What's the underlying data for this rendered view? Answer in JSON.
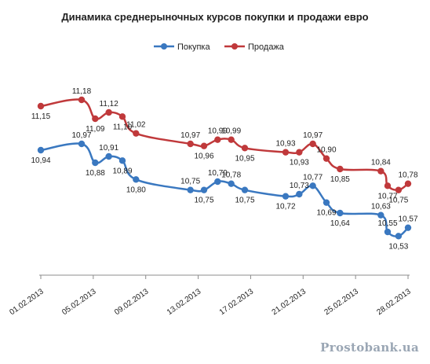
{
  "chart_data": {
    "type": "line",
    "title": "Динамика среднерыночных курсов покупки и продажи евро",
    "xlabel": "",
    "ylabel": "",
    "legend_position": "top",
    "grid": false,
    "x_ticks": [
      "01.02.2013",
      "05.02.2013",
      "09.02.2013",
      "13.02.2013",
      "17.02.2013",
      "21.02.2013",
      "25.02.2013",
      "28.02.2013"
    ],
    "x_range": [
      1,
      28
    ],
    "ylim": [
      10.4,
      11.3
    ],
    "series": [
      {
        "name": "Покупка",
        "color": "#3a78c0",
        "points": [
          {
            "x": 1,
            "y": 10.94,
            "label": "10,94"
          },
          {
            "x": 4,
            "y": 10.97,
            "label": "10,97"
          },
          {
            "x": 5,
            "y": 10.88,
            "label": "10,88"
          },
          {
            "x": 6,
            "y": 10.91,
            "label": "10,91"
          },
          {
            "x": 7,
            "y": 10.89,
            "label": "10,89"
          },
          {
            "x": 8,
            "y": 10.8,
            "label": "10,80"
          },
          {
            "x": 12,
            "y": 10.75,
            "label": "10,75"
          },
          {
            "x": 13,
            "y": 10.75,
            "label": "10,75"
          },
          {
            "x": 14,
            "y": 10.79,
            "label": "10,79"
          },
          {
            "x": 15,
            "y": 10.78,
            "label": "10,78"
          },
          {
            "x": 16,
            "y": 10.75,
            "label": "10,75"
          },
          {
            "x": 19,
            "y": 10.72,
            "label": "10,72"
          },
          {
            "x": 20,
            "y": 10.73,
            "label": "10,73"
          },
          {
            "x": 21,
            "y": 10.77,
            "label": "10,77"
          },
          {
            "x": 22,
            "y": 10.69,
            "label": "10,69"
          },
          {
            "x": 23,
            "y": 10.64,
            "label": "10,64"
          },
          {
            "x": 26,
            "y": 10.63,
            "label": "10,63"
          },
          {
            "x": 26.5,
            "y": 10.55,
            "label": "10,55"
          },
          {
            "x": 27.3,
            "y": 10.53,
            "label": "10,53"
          },
          {
            "x": 28,
            "y": 10.57,
            "label": "10,57"
          }
        ]
      },
      {
        "name": "Продажа",
        "color": "#c0393b",
        "points": [
          {
            "x": 1,
            "y": 11.15,
            "label": "11,15"
          },
          {
            "x": 4,
            "y": 11.18,
            "label": "11,18"
          },
          {
            "x": 5,
            "y": 11.09,
            "label": "11,09"
          },
          {
            "x": 6,
            "y": 11.12,
            "label": "11,12"
          },
          {
            "x": 7,
            "y": 11.1,
            "label": "11,10"
          },
          {
            "x": 8,
            "y": 11.02,
            "label": "11,02"
          },
          {
            "x": 12,
            "y": 10.97,
            "label": "10,97"
          },
          {
            "x": 13,
            "y": 10.96,
            "label": "10,96"
          },
          {
            "x": 14,
            "y": 10.99,
            "label": "10,99"
          },
          {
            "x": 15,
            "y": 10.99,
            "label": "10,99"
          },
          {
            "x": 16,
            "y": 10.95,
            "label": "10,95"
          },
          {
            "x": 19,
            "y": 10.93,
            "label": "10,93"
          },
          {
            "x": 20,
            "y": 10.93,
            "label": "10,93"
          },
          {
            "x": 21,
            "y": 10.97,
            "label": "10,97"
          },
          {
            "x": 22,
            "y": 10.9,
            "label": "10,90"
          },
          {
            "x": 23,
            "y": 10.85,
            "label": "10,85"
          },
          {
            "x": 26,
            "y": 10.84,
            "label": "10,84"
          },
          {
            "x": 26.5,
            "y": 10.77,
            "label": "10,77"
          },
          {
            "x": 27.3,
            "y": 10.75,
            "label": "10,75"
          },
          {
            "x": 28,
            "y": 10.78,
            "label": "10,78"
          }
        ]
      }
    ]
  },
  "watermark": "Prostobank.ua"
}
